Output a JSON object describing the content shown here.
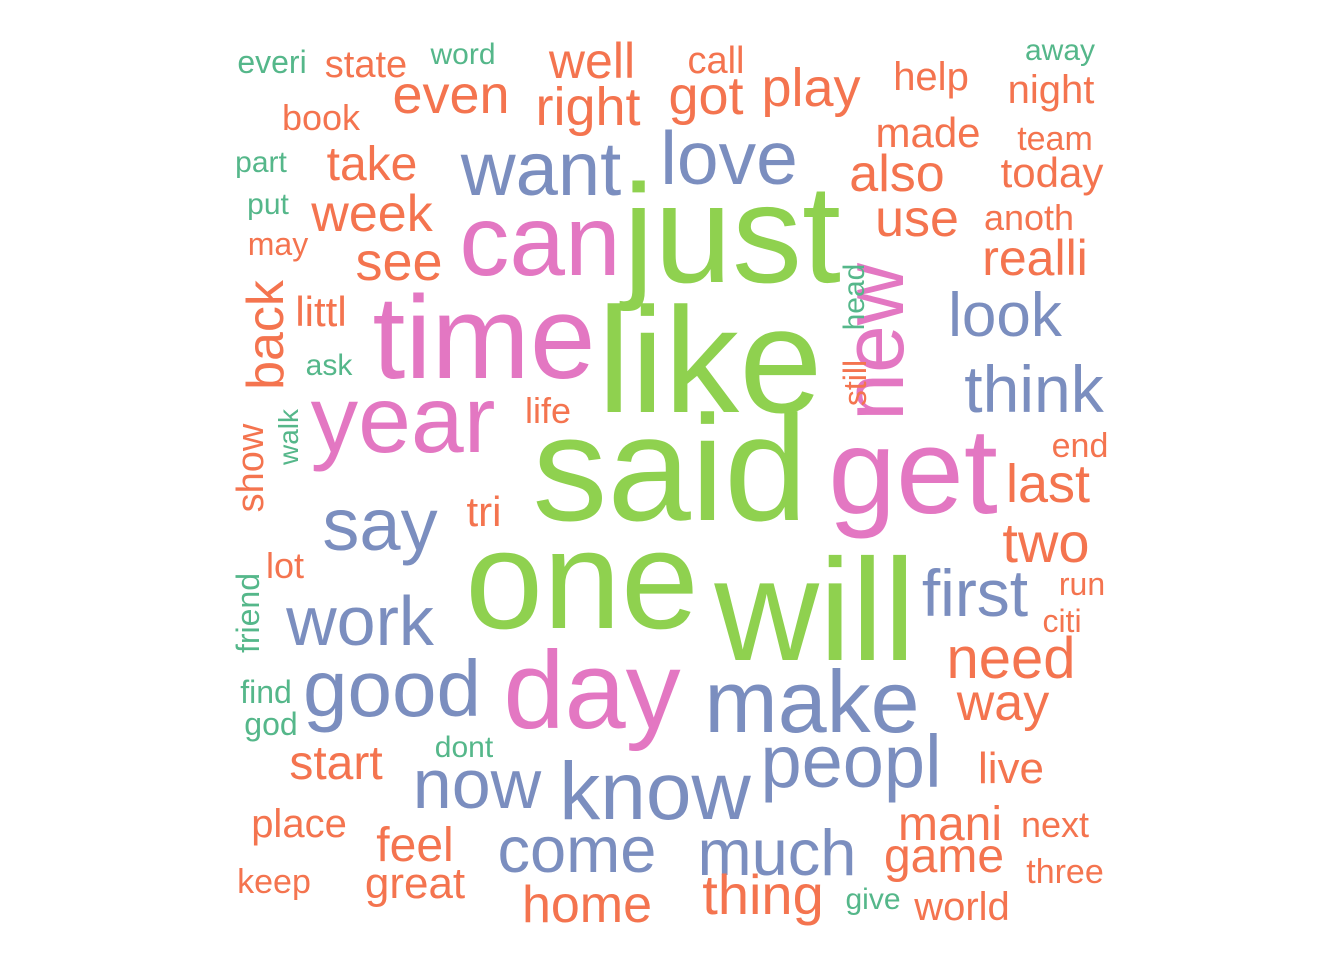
{
  "chart_data": {
    "type": "wordcloud",
    "colors": {
      "tier1": "#8fd14f",
      "tier2": "#e377c2",
      "tier3": "#7b8ebf",
      "tier4": "#f4744f",
      "tier5": "#55b78a"
    },
    "words": [
      {
        "text": "said",
        "tier": 1
      },
      {
        "text": "like",
        "tier": 1
      },
      {
        "text": "one",
        "tier": 1
      },
      {
        "text": "will",
        "tier": 1
      },
      {
        "text": "just",
        "tier": 1
      },
      {
        "text": "time",
        "tier": 2
      },
      {
        "text": "year",
        "tier": 2
      },
      {
        "text": "can",
        "tier": 2
      },
      {
        "text": "get",
        "tier": 2
      },
      {
        "text": "day",
        "tier": 2
      },
      {
        "text": "new",
        "tier": 2
      },
      {
        "text": "make",
        "tier": 3
      },
      {
        "text": "know",
        "tier": 3
      },
      {
        "text": "want",
        "tier": 3
      },
      {
        "text": "love",
        "tier": 3
      },
      {
        "text": "say",
        "tier": 3
      },
      {
        "text": "work",
        "tier": 3
      },
      {
        "text": "good",
        "tier": 3
      },
      {
        "text": "now",
        "tier": 3
      },
      {
        "text": "peopl",
        "tier": 3
      },
      {
        "text": "come",
        "tier": 3
      },
      {
        "text": "much",
        "tier": 3
      },
      {
        "text": "think",
        "tier": 3
      },
      {
        "text": "first",
        "tier": 3
      },
      {
        "text": "look",
        "tier": 3
      },
      {
        "text": "right",
        "tier": 4
      },
      {
        "text": "even",
        "tier": 4
      },
      {
        "text": "well",
        "tier": 4
      },
      {
        "text": "got",
        "tier": 4
      },
      {
        "text": "play",
        "tier": 4
      },
      {
        "text": "also",
        "tier": 4
      },
      {
        "text": "use",
        "tier": 4
      },
      {
        "text": "take",
        "tier": 4
      },
      {
        "text": "week",
        "tier": 4
      },
      {
        "text": "see",
        "tier": 4
      },
      {
        "text": "back",
        "tier": 4
      },
      {
        "text": "need",
        "tier": 4
      },
      {
        "text": "two",
        "tier": 4
      },
      {
        "text": "last",
        "tier": 4
      },
      {
        "text": "way",
        "tier": 4
      },
      {
        "text": "realli",
        "tier": 4
      },
      {
        "text": "home",
        "tier": 4
      },
      {
        "text": "thing",
        "tier": 4
      },
      {
        "text": "mani",
        "tier": 4
      },
      {
        "text": "game",
        "tier": 4
      },
      {
        "text": "start",
        "tier": 4
      },
      {
        "text": "feel",
        "tier": 4
      },
      {
        "text": "great",
        "tier": 4
      },
      {
        "text": "today",
        "tier": 4
      },
      {
        "text": "made",
        "tier": 4
      },
      {
        "text": "live",
        "tier": 4
      },
      {
        "text": "place",
        "tier": 4
      },
      {
        "text": "littl",
        "tier": 4
      },
      {
        "text": "help",
        "tier": 4
      },
      {
        "text": "night",
        "tier": 4
      },
      {
        "text": "world",
        "tier": 4
      },
      {
        "text": "tri",
        "tier": 4
      },
      {
        "text": "state",
        "tier": 4
      },
      {
        "text": "call",
        "tier": 4
      },
      {
        "text": "book",
        "tier": 4
      },
      {
        "text": "show",
        "tier": 4
      },
      {
        "text": "lot",
        "tier": 4
      },
      {
        "text": "life",
        "tier": 4
      },
      {
        "text": "anoth",
        "tier": 4
      },
      {
        "text": "team",
        "tier": 4
      },
      {
        "text": "end",
        "tier": 4
      },
      {
        "text": "run",
        "tier": 4
      },
      {
        "text": "citi",
        "tier": 4
      },
      {
        "text": "next",
        "tier": 4
      },
      {
        "text": "three",
        "tier": 4
      },
      {
        "text": "keep",
        "tier": 4
      },
      {
        "text": "may",
        "tier": 4
      },
      {
        "text": "still",
        "tier": 4
      },
      {
        "text": "everi",
        "tier": 5
      },
      {
        "text": "word",
        "tier": 5
      },
      {
        "text": "away",
        "tier": 5
      },
      {
        "text": "part",
        "tier": 5
      },
      {
        "text": "put",
        "tier": 5
      },
      {
        "text": "ask",
        "tier": 5
      },
      {
        "text": "walk",
        "tier": 5
      },
      {
        "text": "friend",
        "tier": 5
      },
      {
        "text": "find",
        "tier": 5
      },
      {
        "text": "god",
        "tier": 5
      },
      {
        "text": "dont",
        "tier": 5
      },
      {
        "text": "give",
        "tier": 5
      },
      {
        "text": "head",
        "tier": 5
      }
    ]
  }
}
